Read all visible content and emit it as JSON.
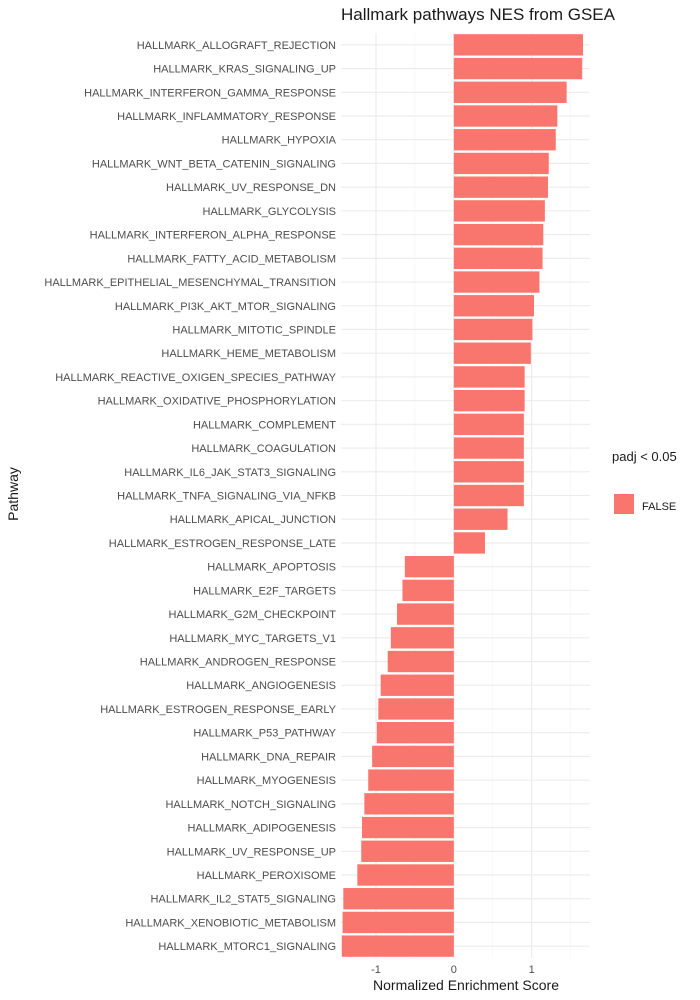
{
  "chart_data": {
    "type": "bar",
    "orientation": "horizontal",
    "title": "Hallmark pathways NES from GSEA",
    "xlabel": "Normalized Enrichment Score",
    "ylabel": "Pathway",
    "xlim": [
      -1.45,
      1.75
    ],
    "xticks": [
      -1,
      0,
      1
    ],
    "xtick_labels": [
      "-1",
      "0",
      "1"
    ],
    "grid": true,
    "legend": {
      "title": "padj < 0.05",
      "entries": [
        {
          "label": "FALSE",
          "color": "#F8766D"
        }
      ],
      "position": "right"
    },
    "bar_color": "#F8766D",
    "categories": [
      "HALLMARK_ALLOGRAFT_REJECTION",
      "HALLMARK_KRAS_SIGNALING_UP",
      "HALLMARK_INTERFERON_GAMMA_RESPONSE",
      "HALLMARK_INFLAMMATORY_RESPONSE",
      "HALLMARK_HYPOXIA",
      "HALLMARK_WNT_BETA_CATENIN_SIGNALING",
      "HALLMARK_UV_RESPONSE_DN",
      "HALLMARK_GLYCOLYSIS",
      "HALLMARK_INTERFERON_ALPHA_RESPONSE",
      "HALLMARK_FATTY_ACID_METABOLISM",
      "HALLMARK_EPITHELIAL_MESENCHYMAL_TRANSITION",
      "HALLMARK_PI3K_AKT_MTOR_SIGNALING",
      "HALLMARK_MITOTIC_SPINDLE",
      "HALLMARK_HEME_METABOLISM",
      "HALLMARK_REACTIVE_OXIGEN_SPECIES_PATHWAY",
      "HALLMARK_OXIDATIVE_PHOSPHORYLATION",
      "HALLMARK_COMPLEMENT",
      "HALLMARK_COAGULATION",
      "HALLMARK_IL6_JAK_STAT3_SIGNALING",
      "HALLMARK_TNFA_SIGNALING_VIA_NFKB",
      "HALLMARK_APICAL_JUNCTION",
      "HALLMARK_ESTROGEN_RESPONSE_LATE",
      "HALLMARK_APOPTOSIS",
      "HALLMARK_E2F_TARGETS",
      "HALLMARK_G2M_CHECKPOINT",
      "HALLMARK_MYC_TARGETS_V1",
      "HALLMARK_ANDROGEN_RESPONSE",
      "HALLMARK_ANGIOGENESIS",
      "HALLMARK_ESTROGEN_RESPONSE_EARLY",
      "HALLMARK_P53_PATHWAY",
      "HALLMARK_DNA_REPAIR",
      "HALLMARK_MYOGENESIS",
      "HALLMARK_NOTCH_SIGNALING",
      "HALLMARK_ADIPOGENESIS",
      "HALLMARK_UV_RESPONSE_UP",
      "HALLMARK_PEROXISOME",
      "HALLMARK_IL2_STAT5_SIGNALING",
      "HALLMARK_XENOBIOTIC_METABOLISM",
      "HALLMARK_MTORC1_SIGNALING"
    ],
    "values": [
      1.66,
      1.65,
      1.45,
      1.33,
      1.31,
      1.22,
      1.21,
      1.17,
      1.15,
      1.14,
      1.1,
      1.03,
      1.01,
      0.99,
      0.91,
      0.91,
      0.9,
      0.9,
      0.9,
      0.9,
      0.69,
      0.4,
      -0.63,
      -0.66,
      -0.73,
      -0.81,
      -0.85,
      -0.94,
      -0.97,
      -0.99,
      -1.05,
      -1.1,
      -1.15,
      -1.18,
      -1.19,
      -1.24,
      -1.42,
      -1.43,
      -1.44
    ]
  }
}
